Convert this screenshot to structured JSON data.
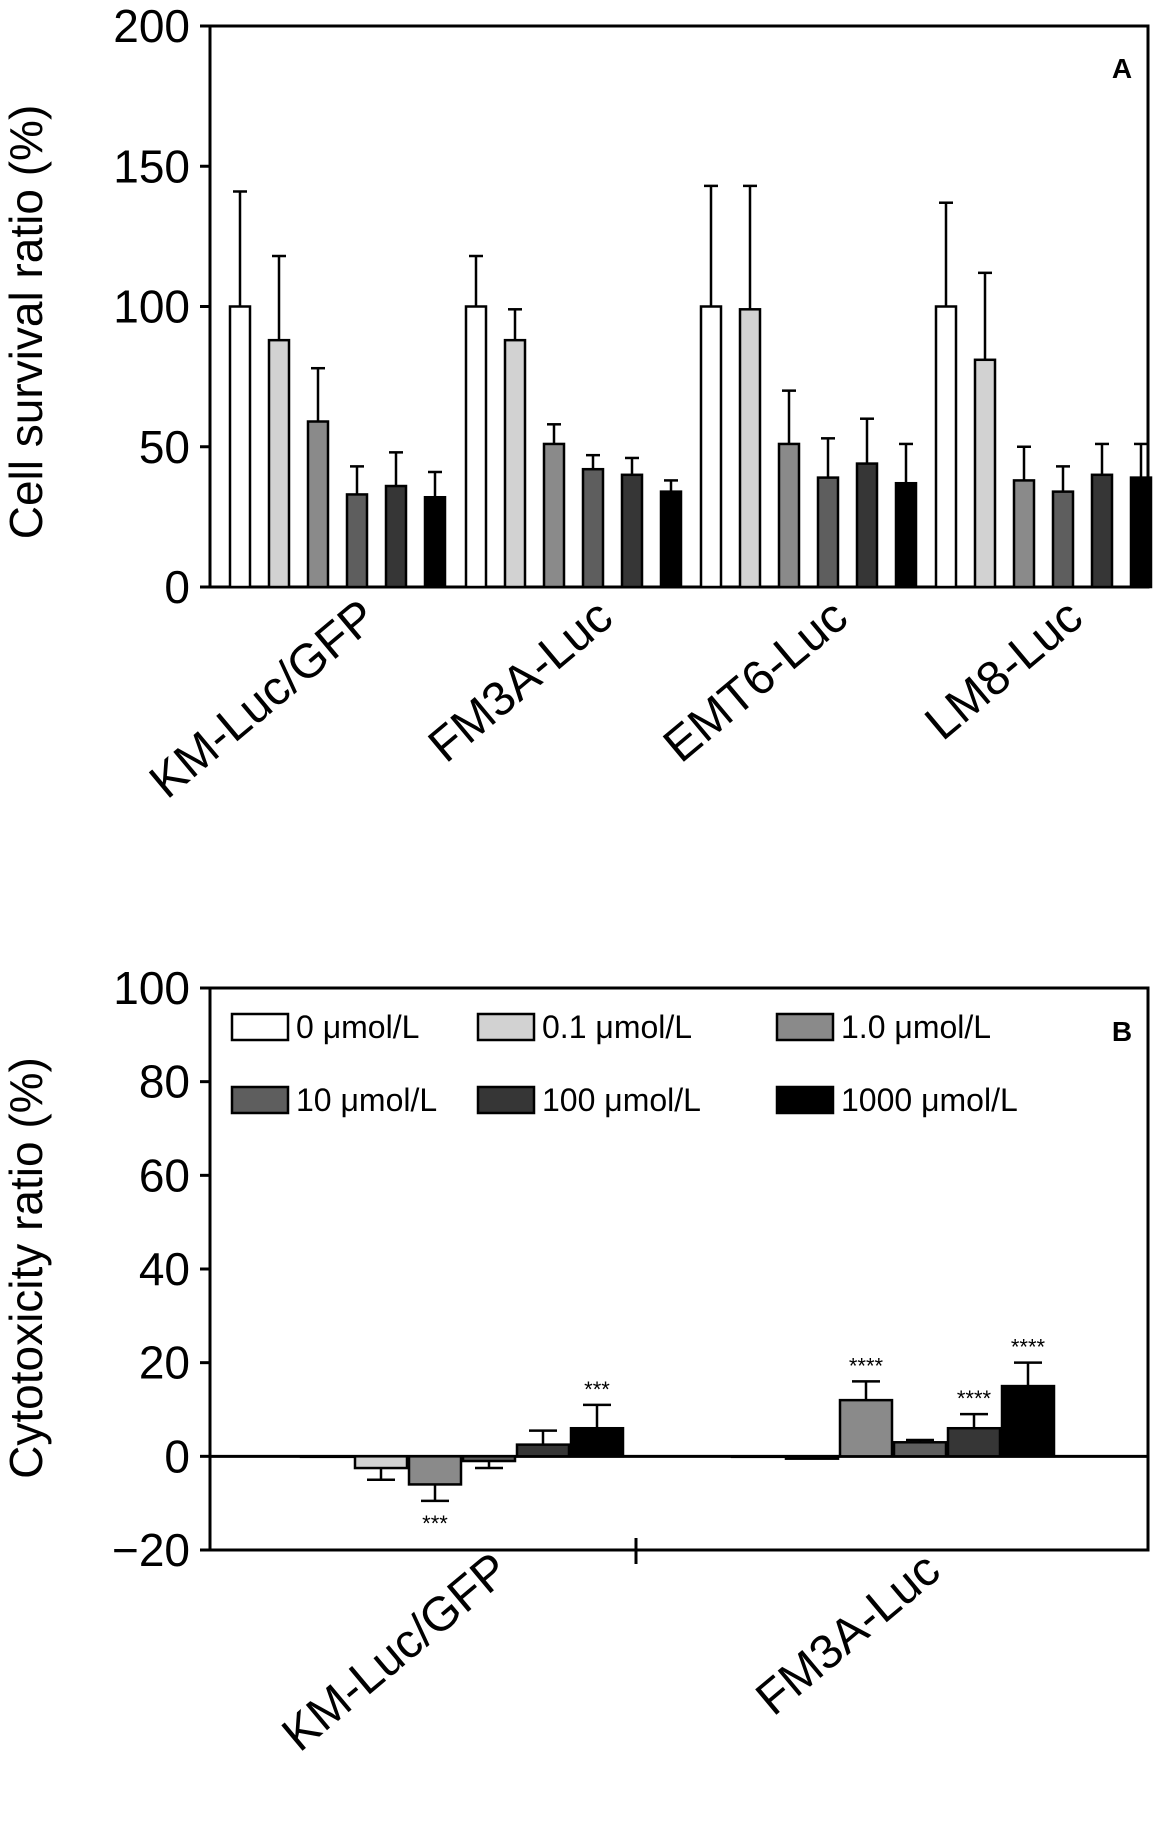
{
  "chart_data": [
    {
      "type": "bar",
      "panel_label": "A",
      "ylabel": "Cell survival ratio (%)",
      "ylim": [
        0,
        200
      ],
      "yticks": [
        0,
        50,
        100,
        150,
        200
      ],
      "categories": [
        "KM-Luc/GFP",
        "FM3A-Luc",
        "EMT6-Luc",
        "LM8-Luc"
      ],
      "series": [
        {
          "name": "0 μmol/L",
          "color": "#ffffff",
          "values": [
            100,
            100,
            100,
            100
          ],
          "errors": [
            41,
            18,
            43,
            37
          ]
        },
        {
          "name": "0.1 μmol/L",
          "color": "#d2d2d2",
          "values": [
            88,
            88,
            99,
            81
          ],
          "errors": [
            30,
            11,
            44,
            31
          ]
        },
        {
          "name": "1.0 μmol/L",
          "color": "#8a8a8a",
          "values": [
            59,
            51,
            51,
            38
          ],
          "errors": [
            19,
            7,
            19,
            12
          ]
        },
        {
          "name": "10 μmol/L",
          "color": "#5e5e5e",
          "values": [
            33,
            42,
            39,
            34
          ],
          "errors": [
            10,
            5,
            14,
            9
          ]
        },
        {
          "name": "100 μmol/L",
          "color": "#363636",
          "values": [
            36,
            40,
            44,
            40
          ],
          "errors": [
            12,
            6,
            16,
            11
          ]
        },
        {
          "name": "1000 μmol/L",
          "color": "#000000",
          "values": [
            32,
            34,
            37,
            39
          ],
          "errors": [
            9,
            4,
            14,
            12
          ]
        }
      ],
      "annotations": []
    },
    {
      "type": "bar",
      "panel_label": "B",
      "ylabel": "Cytotoxicity ratio (%)",
      "ylim": [
        -20,
        100
      ],
      "yticks": [
        -20,
        0,
        20,
        40,
        60,
        80,
        100
      ],
      "ytick_labels": [
        "−20",
        "0",
        "20",
        "40",
        "60",
        "80",
        "100"
      ],
      "categories": [
        "KM-Luc/GFP",
        "FM3A-Luc"
      ],
      "series": [
        {
          "name": "0 μmol/L",
          "color": "#ffffff",
          "values": [
            0,
            0
          ],
          "errors": [
            0,
            0
          ]
        },
        {
          "name": "0.1 μmol/L",
          "color": "#d2d2d2",
          "values": [
            -2.5,
            -0.5
          ],
          "errors": [
            2.5,
            0
          ]
        },
        {
          "name": "1.0 μmol/L",
          "color": "#8a8a8a",
          "values": [
            -6,
            12
          ],
          "errors": [
            3.5,
            4
          ]
        },
        {
          "name": "10 μmol/L",
          "color": "#5e5e5e",
          "values": [
            -1,
            3
          ],
          "errors": [
            1.5,
            0.5
          ]
        },
        {
          "name": "100 μmol/L",
          "color": "#363636",
          "values": [
            2.5,
            6
          ],
          "errors": [
            3,
            3
          ]
        },
        {
          "name": "1000 μmol/L",
          "color": "#000000",
          "values": [
            6,
            15
          ],
          "errors": [
            5,
            5
          ]
        }
      ],
      "annotations": [
        {
          "category": 0,
          "series": 2,
          "text": "***",
          "position": "below"
        },
        {
          "category": 0,
          "series": 5,
          "text": "***",
          "position": "above"
        },
        {
          "category": 1,
          "series": 2,
          "text": "****",
          "position": "above"
        },
        {
          "category": 1,
          "series": 4,
          "text": "****",
          "position": "above"
        },
        {
          "category": 1,
          "series": 5,
          "text": "****",
          "position": "above"
        }
      ],
      "legend": {
        "placement": "top",
        "entries": [
          "0 μmol/L",
          "0.1 μmol/L",
          "1.0 μmol/L",
          "10 μmol/L",
          "100 μmol/L",
          "1000 μmol/L"
        ]
      }
    }
  ]
}
